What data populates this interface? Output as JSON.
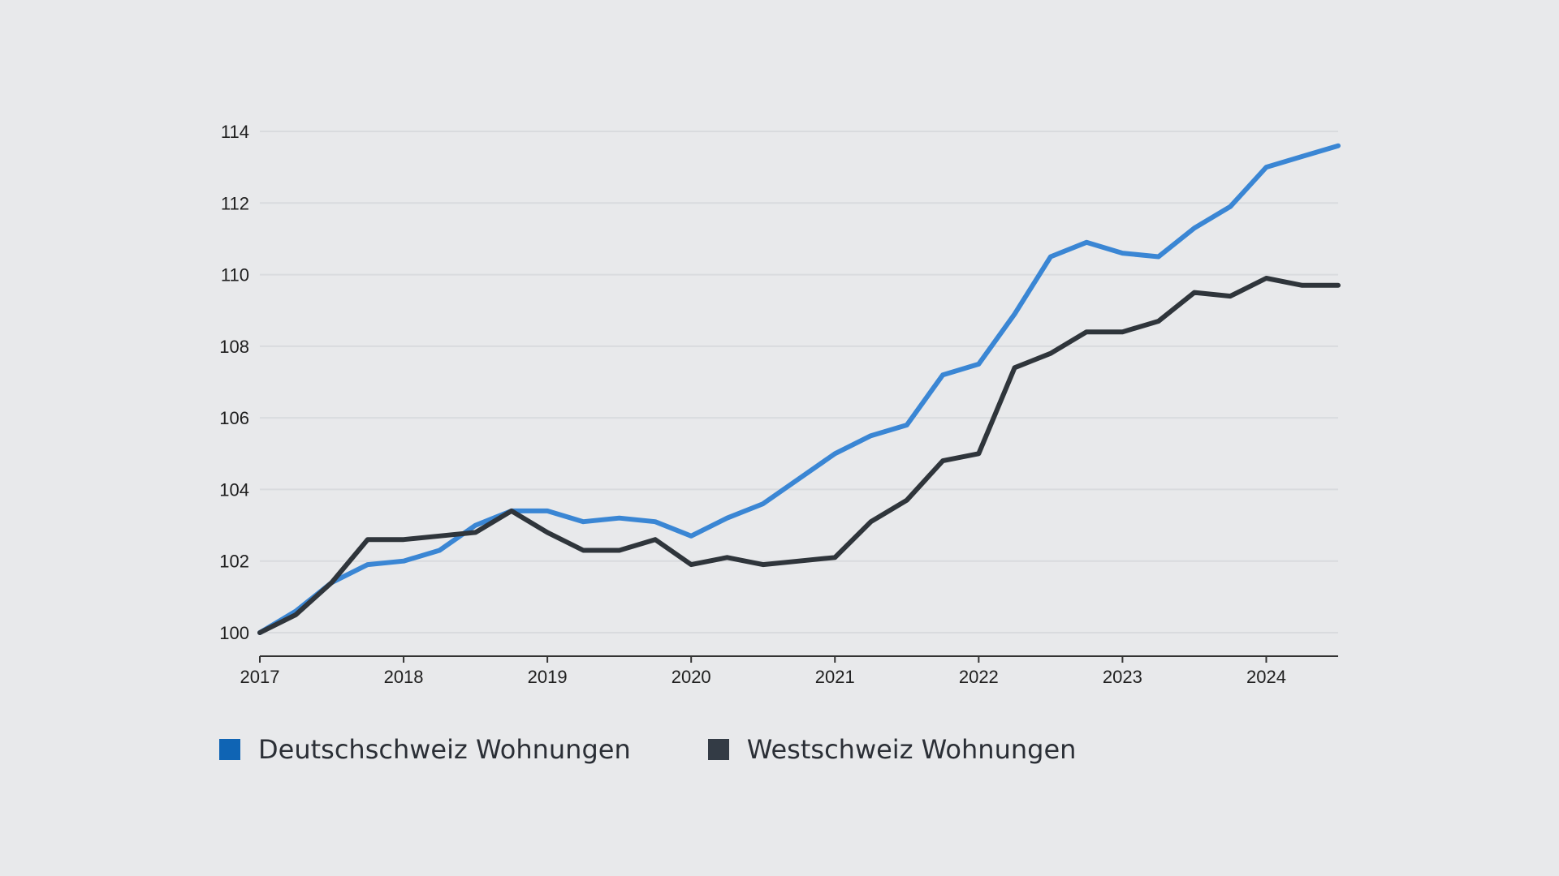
{
  "chart_data": {
    "type": "line",
    "title": "",
    "xlabel": "",
    "ylabel": "",
    "xlim": [
      2017,
      2024.5
    ],
    "ylim": [
      100,
      114
    ],
    "x_ticks": [
      "2017",
      "2018",
      "2019",
      "2020",
      "2021",
      "2022",
      "2023",
      "2024"
    ],
    "y_ticks": [
      "100",
      "102",
      "104",
      "106",
      "108",
      "110",
      "112",
      "114"
    ],
    "grid": "horizontal",
    "legend_position": "bottom-left",
    "x": [
      2017.0,
      2017.25,
      2017.5,
      2017.75,
      2018.0,
      2018.25,
      2018.5,
      2018.75,
      2019.0,
      2019.25,
      2019.5,
      2019.75,
      2020.0,
      2020.25,
      2020.5,
      2020.75,
      2021.0,
      2021.25,
      2021.5,
      2021.75,
      2022.0,
      2022.25,
      2022.5,
      2022.75,
      2023.0,
      2023.25,
      2023.5,
      2023.75,
      2024.0,
      2024.25,
      2024.5
    ],
    "series": [
      {
        "name": "Deutschschweiz Wohnungen",
        "color": "#3a86d4",
        "legend_color": "#0f64b4",
        "values": [
          100.0,
          100.6,
          101.4,
          101.9,
          102.0,
          102.3,
          103.0,
          103.4,
          103.4,
          103.1,
          103.2,
          103.1,
          102.7,
          103.2,
          103.6,
          104.3,
          105.0,
          105.5,
          105.8,
          107.2,
          107.5,
          108.9,
          110.5,
          110.9,
          110.6,
          110.5,
          111.3,
          111.9,
          113.0,
          113.3,
          113.6
        ]
      },
      {
        "name": "Westschweiz Wohnungen",
        "color": "#2f353b",
        "legend_color": "#333b45",
        "values": [
          100.0,
          100.5,
          101.4,
          102.6,
          102.6,
          102.7,
          102.8,
          103.4,
          102.8,
          102.3,
          102.3,
          102.6,
          101.9,
          102.1,
          101.9,
          102.0,
          102.1,
          103.1,
          103.7,
          104.8,
          105.0,
          107.4,
          107.8,
          108.4,
          108.4,
          108.7,
          109.5,
          109.4,
          109.9,
          109.7,
          109.7
        ]
      }
    ]
  }
}
